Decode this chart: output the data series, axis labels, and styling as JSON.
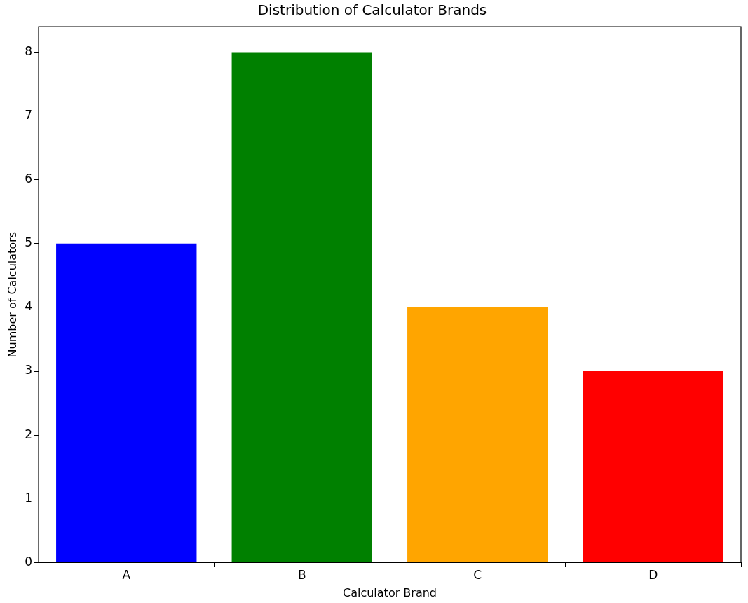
{
  "chart_data": {
    "type": "bar",
    "title": "Distribution of Calculator Brands",
    "xlabel": "Calculator Brand",
    "ylabel": "Number of Calculators",
    "categories": [
      "A",
      "B",
      "C",
      "D"
    ],
    "values": [
      5,
      8,
      4,
      3
    ],
    "colors": [
      "#0000ff",
      "#008000",
      "#ffa500",
      "#ff0000"
    ],
    "ylim": [
      0,
      8.4
    ],
    "yticks": [
      0,
      1,
      2,
      3,
      4,
      5,
      6,
      7,
      8
    ],
    "grid": false,
    "legend": false
  }
}
